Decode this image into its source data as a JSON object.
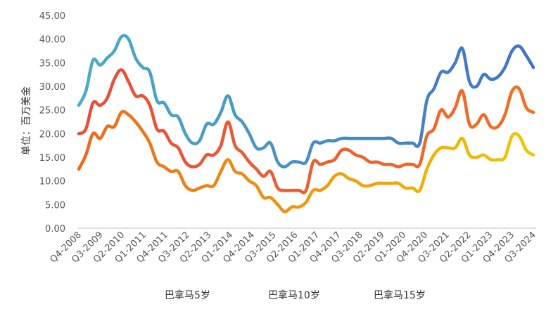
{
  "chart_data": {
    "type": "line",
    "title": "",
    "xlabel": "",
    "ylabel": "单位：百万美金",
    "ylim": [
      0,
      45
    ],
    "yticks": [
      "0.00",
      "5.00",
      "10.00",
      "15.00",
      "20.00",
      "25.00",
      "30.00",
      "35.00",
      "40.00",
      "45.00"
    ],
    "x_tick_labels": [
      "Q4-2008",
      "Q3-2009",
      "Q2-2010",
      "Q1-2011",
      "Q4-2011",
      "Q3-2012",
      "Q2-2013",
      "Q1-2014",
      "Q4-2014",
      "Q3-2015",
      "Q2-2016",
      "Q1-2017",
      "Q4-2017",
      "Q3-2018",
      "Q2-2019",
      "Q1-2020",
      "Q4-2020",
      "Q3-2021",
      "Q2-2022",
      "Q1-2023",
      "Q4-2023",
      "Q3-2024"
    ],
    "legend_position": "bottom",
    "grid": false,
    "series": [
      {
        "name": "巴拿马5岁",
        "color_start": "#4BACC6",
        "color_end": "#4472C4",
        "values": [
          26,
          29,
          35.5,
          34.5,
          36,
          37.5,
          40.5,
          40,
          36,
          34,
          33,
          27,
          26.5,
          24,
          23.5,
          20,
          18,
          18.5,
          22,
          22,
          24.5,
          28,
          24,
          22.5,
          20,
          17,
          17,
          18,
          14,
          13,
          14,
          14,
          14,
          18,
          18,
          18.5,
          18.5,
          19,
          19,
          19,
          19,
          19,
          19,
          19,
          19,
          18,
          18,
          18,
          18,
          27,
          29.5,
          33,
          33,
          35,
          38,
          31,
          30,
          32.5,
          31.5,
          32,
          34,
          37.5,
          38.5,
          36.5,
          34
        ]
      },
      {
        "name": "巴拿马10岁",
        "color_start": "#E84C3D",
        "color_end": "#F26F21",
        "values": [
          20,
          21,
          26.5,
          26,
          27.5,
          31.5,
          33.5,
          31,
          28,
          28,
          26,
          21,
          20.5,
          18,
          17,
          14,
          13,
          13.5,
          15.5,
          15.5,
          17.5,
          22.5,
          17.5,
          16,
          14,
          12.5,
          11,
          12,
          8.5,
          8,
          8,
          8,
          8,
          14,
          13.5,
          14,
          14.5,
          16.5,
          16.5,
          15.5,
          15,
          14,
          14,
          13.5,
          13.5,
          13,
          13.5,
          13.5,
          13.5,
          19.5,
          21,
          25,
          23.5,
          25.5,
          29,
          22,
          22,
          24,
          21.5,
          21.5,
          24,
          29,
          29.5,
          25.5,
          24.5
        ]
      },
      {
        "name": "巴拿马15岁",
        "color_start": "#EA6A1C",
        "color_end": "#F2C500",
        "values": [
          12.5,
          15.5,
          20,
          19,
          21.5,
          21.5,
          24.5,
          24,
          22.5,
          20.5,
          18,
          14,
          13,
          12,
          12,
          9,
          8,
          8.5,
          9,
          9,
          12,
          14.5,
          12,
          11.5,
          10,
          9,
          6.5,
          6.5,
          5,
          3.5,
          4.5,
          4.5,
          5.5,
          8,
          8,
          9,
          11,
          11.5,
          10.5,
          10,
          9,
          9,
          9.5,
          9.5,
          9.5,
          9.5,
          8.5,
          8.5,
          8,
          12.5,
          15.5,
          17,
          17,
          17,
          19,
          15.5,
          15,
          15.5,
          14.5,
          14.5,
          15,
          19.5,
          19.5,
          16.5,
          15.5
        ]
      }
    ]
  }
}
